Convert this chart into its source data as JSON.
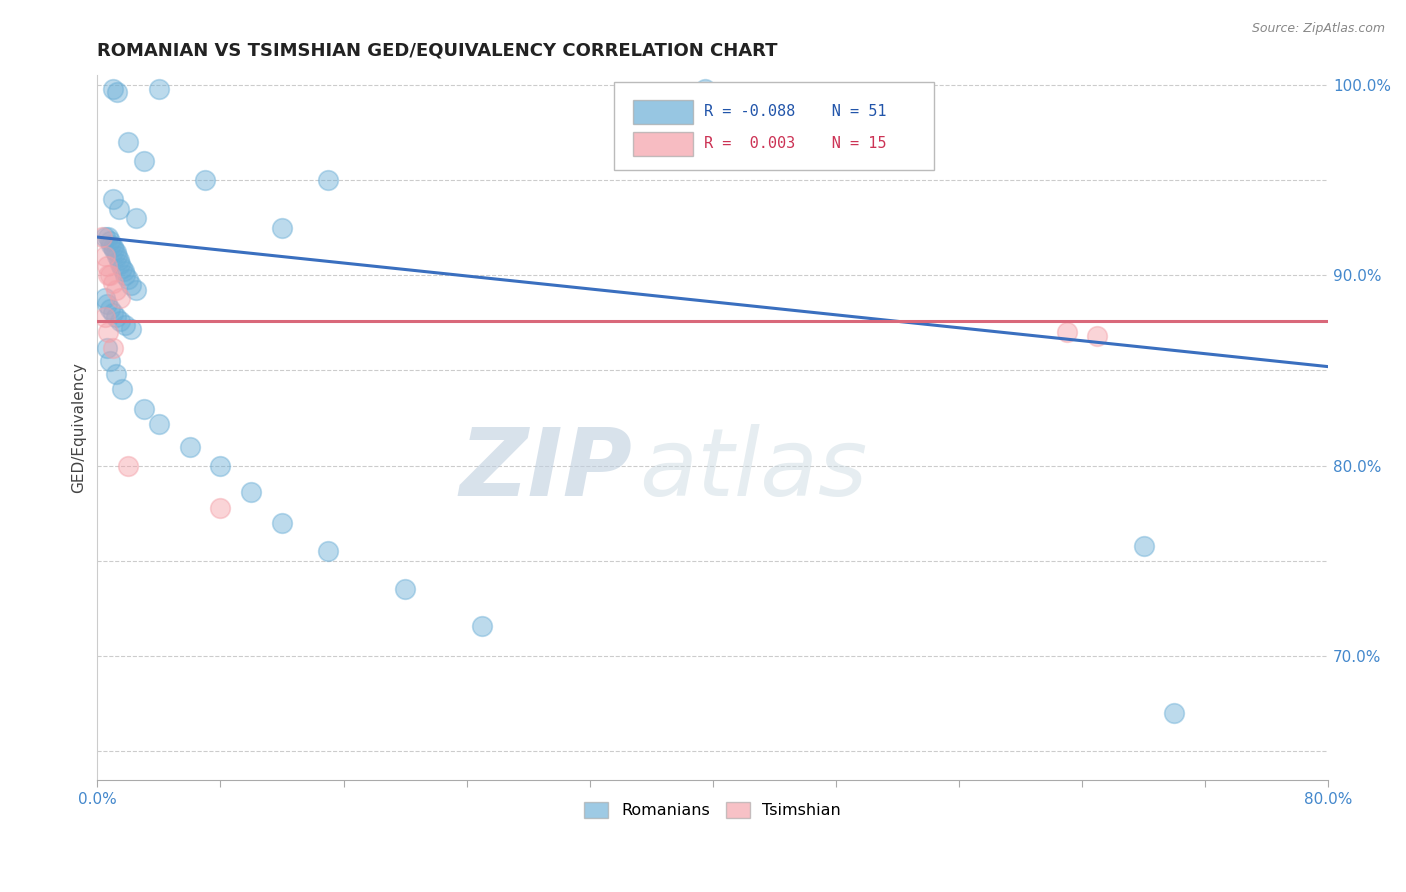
{
  "title": "ROMANIAN VS TSIMSHIAN GED/EQUIVALENCY CORRELATION CHART",
  "source": "Source: ZipAtlas.com",
  "ylabel": "GED/Equivalency",
  "xlim": [
    0.0,
    0.8
  ],
  "ylim": [
    0.635,
    1.005
  ],
  "yticks": [
    0.7,
    0.8,
    0.9,
    1.0
  ],
  "ytick_labels": [
    "70.0%",
    "80.0%",
    "90.0%",
    "100.0%"
  ],
  "blue_r": "-0.088",
  "blue_n": "51",
  "pink_r": "0.003",
  "pink_n": "15",
  "blue_color": "#6baed6",
  "pink_color": "#f4a0a8",
  "blue_line_color": "#3a6fbf",
  "pink_line_color": "#d9687a",
  "legend_label_blue": "Romanians",
  "legend_label_pink": "Tsimshian",
  "watermark_zip": "ZIP",
  "watermark_atlas": "atlas",
  "blue_scatter_x": [
    0.01,
    0.013,
    0.04,
    0.395,
    0.02,
    0.03,
    0.07,
    0.15,
    0.01,
    0.014,
    0.025,
    0.12,
    0.005,
    0.007,
    0.008,
    0.009,
    0.01,
    0.011,
    0.012,
    0.013,
    0.014,
    0.015,
    0.016,
    0.017,
    0.018,
    0.02,
    0.022,
    0.025,
    0.005,
    0.006,
    0.008,
    0.01,
    0.012,
    0.015,
    0.018,
    0.022,
    0.006,
    0.008,
    0.012,
    0.016,
    0.03,
    0.04,
    0.06,
    0.08,
    0.1,
    0.12,
    0.15,
    0.2,
    0.25,
    0.68,
    0.7
  ],
  "blue_scatter_y": [
    0.998,
    0.996,
    0.998,
    0.998,
    0.97,
    0.96,
    0.95,
    0.95,
    0.94,
    0.935,
    0.93,
    0.925,
    0.92,
    0.92,
    0.918,
    0.916,
    0.915,
    0.913,
    0.912,
    0.91,
    0.908,
    0.906,
    0.904,
    0.902,
    0.9,
    0.898,
    0.895,
    0.892,
    0.888,
    0.885,
    0.882,
    0.88,
    0.878,
    0.876,
    0.874,
    0.872,
    0.862,
    0.855,
    0.848,
    0.84,
    0.83,
    0.822,
    0.81,
    0.8,
    0.786,
    0.77,
    0.755,
    0.735,
    0.716,
    0.758,
    0.67
  ],
  "pink_scatter_x": [
    0.003,
    0.005,
    0.006,
    0.007,
    0.008,
    0.01,
    0.012,
    0.015,
    0.005,
    0.007,
    0.01,
    0.02,
    0.08,
    0.63,
    0.65
  ],
  "pink_scatter_y": [
    0.92,
    0.91,
    0.905,
    0.9,
    0.9,
    0.896,
    0.892,
    0.888,
    0.878,
    0.87,
    0.862,
    0.8,
    0.778,
    0.87,
    0.868
  ],
  "blue_line_x": [
    0.0,
    0.8
  ],
  "blue_line_y": [
    0.92,
    0.852
  ],
  "pink_line_x": [
    0.0,
    0.8
  ],
  "pink_line_y": [
    0.876,
    0.876
  ],
  "background_color": "#ffffff",
  "grid_color": "#cccccc",
  "title_fontsize": 13,
  "axis_label_fontsize": 11,
  "tick_fontsize": 11,
  "marker_size": 200,
  "marker_alpha": 0.45
}
